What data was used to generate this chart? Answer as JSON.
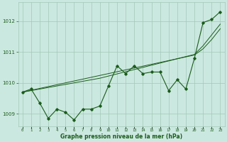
{
  "background_color": "#cbe8e0",
  "grid_color": "#a0c8b8",
  "line_color_dark": "#1a5c1a",
  "line_color_mid": "#2e7d32",
  "xlabel": "Graphe pression niveau de la mer (hPa)",
  "ylabel_ticks": [
    1009,
    1010,
    1011,
    1012
  ],
  "xlim": [
    -0.5,
    23.5
  ],
  "ylim": [
    1008.6,
    1012.6
  ],
  "x": [
    0,
    1,
    2,
    3,
    4,
    5,
    6,
    7,
    8,
    9,
    10,
    11,
    12,
    13,
    14,
    15,
    16,
    17,
    18,
    19,
    20,
    21,
    22,
    23
  ],
  "series1": [
    1009.7,
    1009.8,
    1009.35,
    1008.85,
    1009.15,
    1009.05,
    1008.8,
    1009.15,
    1009.15,
    1009.25,
    1009.9,
    1010.55,
    1010.3,
    1010.55,
    1010.3,
    1010.35,
    1010.35,
    1009.75,
    1010.1,
    1009.8,
    1010.8,
    1011.95,
    1012.05,
    1012.3
  ],
  "series_smooth": [
    1009.7,
    1009.75,
    1009.8,
    1009.85,
    1009.9,
    1009.95,
    1010.0,
    1010.05,
    1010.1,
    1010.15,
    1010.22,
    1010.29,
    1010.36,
    1010.43,
    1010.5,
    1010.57,
    1010.64,
    1010.71,
    1010.78,
    1010.85,
    1010.92,
    1011.2,
    1011.55,
    1011.9
  ],
  "series_trend": [
    1009.7,
    1009.76,
    1009.82,
    1009.88,
    1009.94,
    1010.0,
    1010.06,
    1010.12,
    1010.18,
    1010.24,
    1010.3,
    1010.36,
    1010.42,
    1010.48,
    1010.54,
    1010.6,
    1010.66,
    1010.72,
    1010.78,
    1010.84,
    1010.9,
    1011.1,
    1011.4,
    1011.75
  ]
}
